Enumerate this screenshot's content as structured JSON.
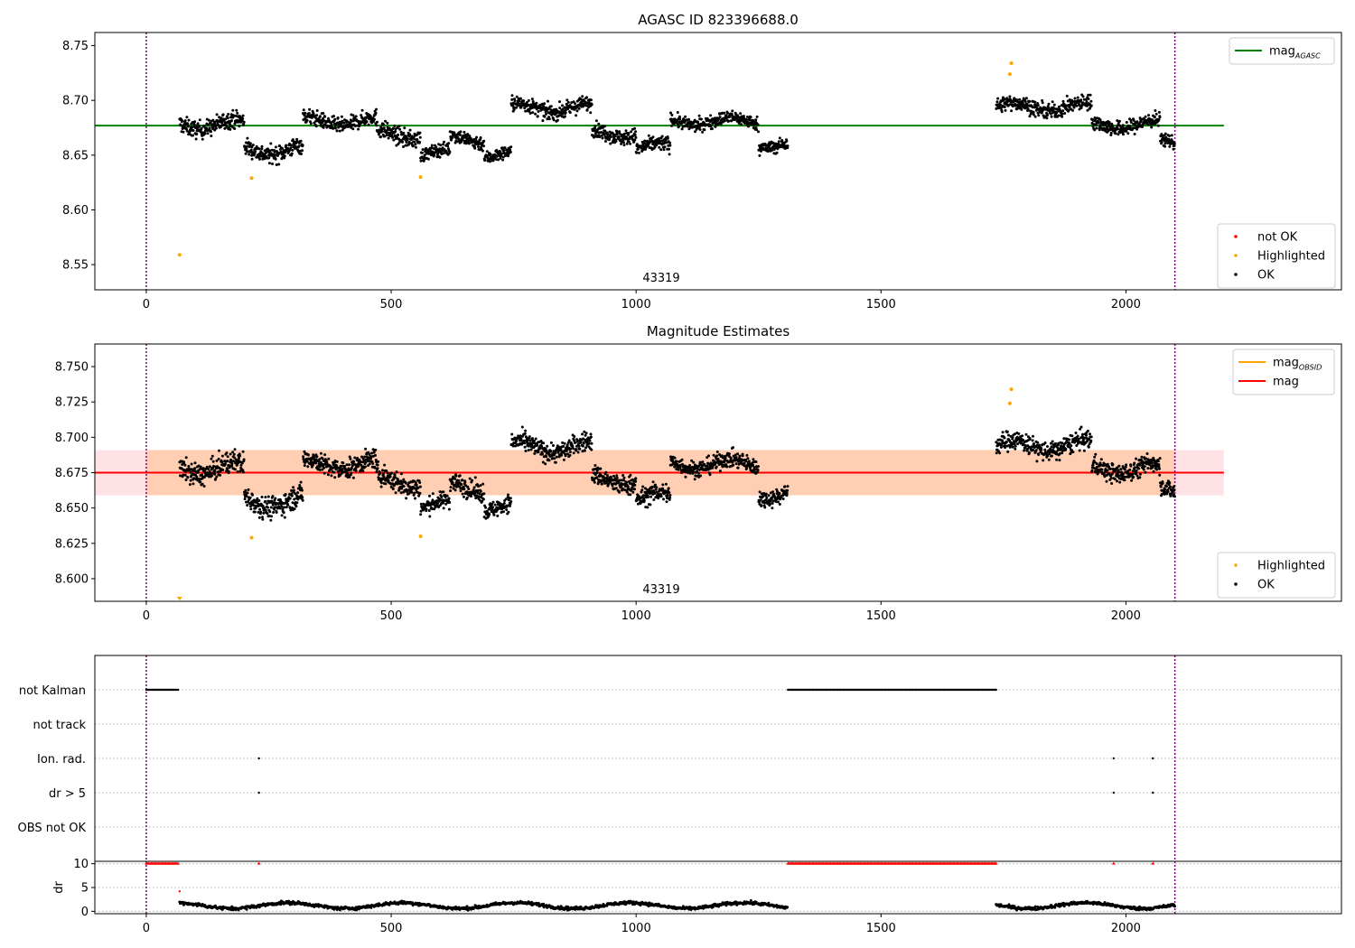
{
  "chart_data": [
    {
      "type": "scatter",
      "title": "AGASC ID 823396688.0",
      "xlim": [
        -105,
        2440
      ],
      "ylim": [
        8.527,
        8.762
      ],
      "xticks": [
        0,
        500,
        1000,
        1500,
        2000
      ],
      "yticks": [
        8.55,
        8.6,
        8.65,
        8.7,
        8.75
      ],
      "ytick_labels": [
        "8.55",
        "8.60",
        "8.65",
        "8.70",
        "8.75"
      ],
      "obsid_label": {
        "text": "43319",
        "x": 1050
      },
      "vlines": [
        0,
        2100
      ],
      "hlines": [
        {
          "name": "mag",
          "sub": "AGASC",
          "y": 8.677,
          "x0": -105,
          "x1": 2200,
          "color": "#008000"
        }
      ],
      "legend_top": {
        "placement": "top-right",
        "entries": [
          {
            "label": "mag",
            "sub": "AGASC",
            "kind": "line",
            "color": "#008000"
          }
        ]
      },
      "legend_bottom": {
        "placement": "bottom-right",
        "entries": [
          {
            "label": "not OK",
            "kind": "dot",
            "color": "#ff0000"
          },
          {
            "label": "Highlighted",
            "kind": "dot",
            "color": "#ffa500"
          },
          {
            "label": "OK",
            "kind": "dot",
            "color": "#000000"
          }
        ]
      },
      "highlighted_points": [
        [
          68,
          8.559
        ],
        [
          215,
          8.629
        ],
        [
          560,
          8.63
        ],
        [
          1763,
          8.724
        ],
        [
          1766,
          8.734
        ]
      ],
      "ok_segments": [
        {
          "x0": 68,
          "x1": 200,
          "mean": 8.678,
          "sd": 0.008
        },
        {
          "x0": 200,
          "x1": 320,
          "mean": 8.655,
          "sd": 0.008
        },
        {
          "x0": 320,
          "x1": 470,
          "mean": 8.681,
          "sd": 0.007
        },
        {
          "x0": 470,
          "x1": 560,
          "mean": 8.669,
          "sd": 0.008
        },
        {
          "x0": 560,
          "x1": 620,
          "mean": 8.652,
          "sd": 0.006
        },
        {
          "x0": 620,
          "x1": 690,
          "mean": 8.665,
          "sd": 0.007
        },
        {
          "x0": 690,
          "x1": 745,
          "mean": 8.651,
          "sd": 0.006
        },
        {
          "x0": 745,
          "x1": 910,
          "mean": 8.693,
          "sd": 0.007
        },
        {
          "x0": 910,
          "x1": 1000,
          "mean": 8.67,
          "sd": 0.007
        },
        {
          "x0": 1000,
          "x1": 1070,
          "mean": 8.657,
          "sd": 0.007
        },
        {
          "x0": 1070,
          "x1": 1250,
          "mean": 8.681,
          "sd": 0.006
        },
        {
          "x0": 1250,
          "x1": 1310,
          "mean": 8.66,
          "sd": 0.006
        },
        {
          "x0": 1735,
          "x1": 1930,
          "mean": 8.694,
          "sd": 0.007
        },
        {
          "x0": 1930,
          "x1": 2070,
          "mean": 8.678,
          "sd": 0.007
        },
        {
          "x0": 2070,
          "x1": 2100,
          "mean": 8.662,
          "sd": 0.006
        }
      ]
    },
    {
      "type": "scatter",
      "title": "Magnitude Estimates",
      "xlim": [
        -105,
        2440
      ],
      "ylim": [
        8.584,
        8.766
      ],
      "xticks": [
        0,
        500,
        1000,
        1500,
        2000
      ],
      "yticks": [
        8.6,
        8.625,
        8.65,
        8.675,
        8.7,
        8.725,
        8.75
      ],
      "ytick_labels": [
        "8.600",
        "8.625",
        "8.650",
        "8.675",
        "8.700",
        "8.725",
        "8.750"
      ],
      "obsid_label": {
        "text": "43319",
        "x": 1050
      },
      "vlines": [
        0,
        2100
      ],
      "bands": [
        {
          "x0": -105,
          "x1": 2200,
          "y0": 8.659,
          "y1": 8.691,
          "color": "#ffb6c1",
          "opacity": 0.4
        },
        {
          "x0": 0,
          "x1": 2100,
          "y0": 8.659,
          "y1": 8.691,
          "color": "#ffa040",
          "opacity": 0.3
        }
      ],
      "hlines": [
        {
          "name": "mag",
          "sub": "OBSID",
          "y": 8.675,
          "x0": 0,
          "x1": 2100,
          "color": "#ffa500"
        },
        {
          "name": "mag",
          "y": 8.675,
          "x0": -105,
          "x1": 2200,
          "color": "#ff0000"
        }
      ],
      "legend_top": {
        "placement": "top-right",
        "entries": [
          {
            "label": "mag",
            "sub": "OBSID",
            "kind": "line",
            "color": "#ffa500"
          },
          {
            "label": "mag",
            "kind": "line",
            "color": "#ff0000"
          }
        ]
      },
      "legend_bottom": {
        "placement": "bottom-right",
        "entries": [
          {
            "label": "Highlighted",
            "kind": "dot",
            "color": "#ffa500"
          },
          {
            "label": "OK",
            "kind": "dot",
            "color": "#000000"
          }
        ]
      },
      "highlighted_points": [
        [
          215,
          8.629
        ],
        [
          560,
          8.63
        ],
        [
          1763,
          8.724
        ],
        [
          1766,
          8.734
        ]
      ],
      "ok_segments": [
        {
          "x0": 68,
          "x1": 200,
          "mean": 8.678,
          "sd": 0.008
        },
        {
          "x0": 200,
          "x1": 320,
          "mean": 8.655,
          "sd": 0.008
        },
        {
          "x0": 320,
          "x1": 470,
          "mean": 8.681,
          "sd": 0.007
        },
        {
          "x0": 470,
          "x1": 560,
          "mean": 8.669,
          "sd": 0.008
        },
        {
          "x0": 560,
          "x1": 620,
          "mean": 8.652,
          "sd": 0.006
        },
        {
          "x0": 620,
          "x1": 690,
          "mean": 8.665,
          "sd": 0.007
        },
        {
          "x0": 690,
          "x1": 745,
          "mean": 8.651,
          "sd": 0.006
        },
        {
          "x0": 745,
          "x1": 910,
          "mean": 8.693,
          "sd": 0.007
        },
        {
          "x0": 910,
          "x1": 1000,
          "mean": 8.67,
          "sd": 0.007
        },
        {
          "x0": 1000,
          "x1": 1070,
          "mean": 8.657,
          "sd": 0.007
        },
        {
          "x0": 1070,
          "x1": 1250,
          "mean": 8.681,
          "sd": 0.006
        },
        {
          "x0": 1250,
          "x1": 1310,
          "mean": 8.66,
          "sd": 0.006
        },
        {
          "x0": 1735,
          "x1": 1930,
          "mean": 8.694,
          "sd": 0.007
        },
        {
          "x0": 1930,
          "x1": 2070,
          "mean": 8.678,
          "sd": 0.007
        },
        {
          "x0": 2070,
          "x1": 2100,
          "mean": 8.662,
          "sd": 0.006
        }
      ]
    },
    {
      "type": "scatter",
      "title": "",
      "xlim": [
        -105,
        2440
      ],
      "vlines": [
        0,
        2100
      ],
      "flag_rows": [
        "not Kalman",
        "not track",
        "Ion. rad.",
        "dr > 5",
        "OBS not OK"
      ],
      "flags": {
        "not Kalman": [
          [
            0,
            65
          ],
          [
            1310,
            1735
          ]
        ],
        "not track": [],
        "Ion. rad.": [
          [
            230,
            230
          ],
          [
            1975,
            1975
          ],
          [
            2055,
            2055
          ]
        ],
        "dr > 5": [
          [
            230,
            230
          ],
          [
            1975,
            1975
          ],
          [
            2055,
            2055
          ]
        ],
        "OBS not OK": []
      },
      "flag_color": "#000000"
    },
    {
      "type": "scatter",
      "ylabel": "dr",
      "xlim": [
        -105,
        2440
      ],
      "ylim": [
        -0.5,
        10.5
      ],
      "yticks": [
        0,
        5,
        10
      ],
      "ytick_labels": [
        "0",
        "5",
        "10"
      ],
      "xticks": [
        0,
        500,
        1000,
        1500,
        2000
      ],
      "vlines": [
        0,
        2100
      ],
      "dr_clipped": {
        "value": 10,
        "color": "#ff0000",
        "ranges": [
          [
            0,
            65
          ],
          [
            1310,
            1735
          ]
        ],
        "singles": [
          230,
          1975,
          2055
        ]
      },
      "dr_extra": [
        [
          68,
          4.2
        ]
      ],
      "dr_segments": [
        [
          68,
          1310,
          1.2
        ],
        [
          1735,
          2100,
          1.2
        ]
      ]
    }
  ]
}
